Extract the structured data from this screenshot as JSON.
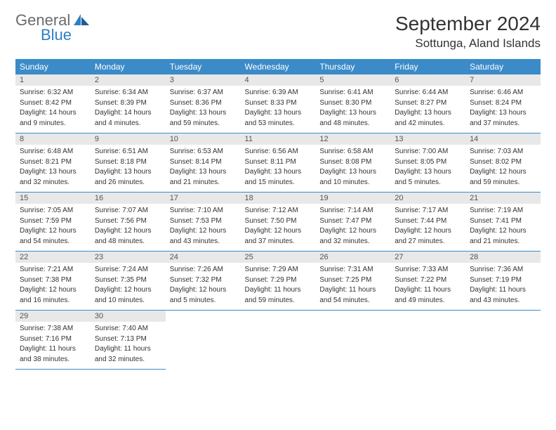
{
  "logo": {
    "general": "General",
    "blue": "Blue"
  },
  "title": "September 2024",
  "location": "Sottunga, Aland Islands",
  "colors": {
    "header_bg": "#3b8bc8",
    "header_text": "#ffffff",
    "daynum_bg": "#e8e8e8",
    "daynum_text": "#555555",
    "row_border": "#3b8bc8",
    "logo_gray": "#6b6b6b",
    "logo_blue": "#2f7fc1"
  },
  "weekdays": [
    "Sunday",
    "Monday",
    "Tuesday",
    "Wednesday",
    "Thursday",
    "Friday",
    "Saturday"
  ],
  "days": [
    {
      "n": "1",
      "sunrise": "Sunrise: 6:32 AM",
      "sunset": "Sunset: 8:42 PM",
      "day1": "Daylight: 14 hours",
      "day2": "and 9 minutes."
    },
    {
      "n": "2",
      "sunrise": "Sunrise: 6:34 AM",
      "sunset": "Sunset: 8:39 PM",
      "day1": "Daylight: 14 hours",
      "day2": "and 4 minutes."
    },
    {
      "n": "3",
      "sunrise": "Sunrise: 6:37 AM",
      "sunset": "Sunset: 8:36 PM",
      "day1": "Daylight: 13 hours",
      "day2": "and 59 minutes."
    },
    {
      "n": "4",
      "sunrise": "Sunrise: 6:39 AM",
      "sunset": "Sunset: 8:33 PM",
      "day1": "Daylight: 13 hours",
      "day2": "and 53 minutes."
    },
    {
      "n": "5",
      "sunrise": "Sunrise: 6:41 AM",
      "sunset": "Sunset: 8:30 PM",
      "day1": "Daylight: 13 hours",
      "day2": "and 48 minutes."
    },
    {
      "n": "6",
      "sunrise": "Sunrise: 6:44 AM",
      "sunset": "Sunset: 8:27 PM",
      "day1": "Daylight: 13 hours",
      "day2": "and 42 minutes."
    },
    {
      "n": "7",
      "sunrise": "Sunrise: 6:46 AM",
      "sunset": "Sunset: 8:24 PM",
      "day1": "Daylight: 13 hours",
      "day2": "and 37 minutes."
    },
    {
      "n": "8",
      "sunrise": "Sunrise: 6:48 AM",
      "sunset": "Sunset: 8:21 PM",
      "day1": "Daylight: 13 hours",
      "day2": "and 32 minutes."
    },
    {
      "n": "9",
      "sunrise": "Sunrise: 6:51 AM",
      "sunset": "Sunset: 8:18 PM",
      "day1": "Daylight: 13 hours",
      "day2": "and 26 minutes."
    },
    {
      "n": "10",
      "sunrise": "Sunrise: 6:53 AM",
      "sunset": "Sunset: 8:14 PM",
      "day1": "Daylight: 13 hours",
      "day2": "and 21 minutes."
    },
    {
      "n": "11",
      "sunrise": "Sunrise: 6:56 AM",
      "sunset": "Sunset: 8:11 PM",
      "day1": "Daylight: 13 hours",
      "day2": "and 15 minutes."
    },
    {
      "n": "12",
      "sunrise": "Sunrise: 6:58 AM",
      "sunset": "Sunset: 8:08 PM",
      "day1": "Daylight: 13 hours",
      "day2": "and 10 minutes."
    },
    {
      "n": "13",
      "sunrise": "Sunrise: 7:00 AM",
      "sunset": "Sunset: 8:05 PM",
      "day1": "Daylight: 13 hours",
      "day2": "and 5 minutes."
    },
    {
      "n": "14",
      "sunrise": "Sunrise: 7:03 AM",
      "sunset": "Sunset: 8:02 PM",
      "day1": "Daylight: 12 hours",
      "day2": "and 59 minutes."
    },
    {
      "n": "15",
      "sunrise": "Sunrise: 7:05 AM",
      "sunset": "Sunset: 7:59 PM",
      "day1": "Daylight: 12 hours",
      "day2": "and 54 minutes."
    },
    {
      "n": "16",
      "sunrise": "Sunrise: 7:07 AM",
      "sunset": "Sunset: 7:56 PM",
      "day1": "Daylight: 12 hours",
      "day2": "and 48 minutes."
    },
    {
      "n": "17",
      "sunrise": "Sunrise: 7:10 AM",
      "sunset": "Sunset: 7:53 PM",
      "day1": "Daylight: 12 hours",
      "day2": "and 43 minutes."
    },
    {
      "n": "18",
      "sunrise": "Sunrise: 7:12 AM",
      "sunset": "Sunset: 7:50 PM",
      "day1": "Daylight: 12 hours",
      "day2": "and 37 minutes."
    },
    {
      "n": "19",
      "sunrise": "Sunrise: 7:14 AM",
      "sunset": "Sunset: 7:47 PM",
      "day1": "Daylight: 12 hours",
      "day2": "and 32 minutes."
    },
    {
      "n": "20",
      "sunrise": "Sunrise: 7:17 AM",
      "sunset": "Sunset: 7:44 PM",
      "day1": "Daylight: 12 hours",
      "day2": "and 27 minutes."
    },
    {
      "n": "21",
      "sunrise": "Sunrise: 7:19 AM",
      "sunset": "Sunset: 7:41 PM",
      "day1": "Daylight: 12 hours",
      "day2": "and 21 minutes."
    },
    {
      "n": "22",
      "sunrise": "Sunrise: 7:21 AM",
      "sunset": "Sunset: 7:38 PM",
      "day1": "Daylight: 12 hours",
      "day2": "and 16 minutes."
    },
    {
      "n": "23",
      "sunrise": "Sunrise: 7:24 AM",
      "sunset": "Sunset: 7:35 PM",
      "day1": "Daylight: 12 hours",
      "day2": "and 10 minutes."
    },
    {
      "n": "24",
      "sunrise": "Sunrise: 7:26 AM",
      "sunset": "Sunset: 7:32 PM",
      "day1": "Daylight: 12 hours",
      "day2": "and 5 minutes."
    },
    {
      "n": "25",
      "sunrise": "Sunrise: 7:29 AM",
      "sunset": "Sunset: 7:29 PM",
      "day1": "Daylight: 11 hours",
      "day2": "and 59 minutes."
    },
    {
      "n": "26",
      "sunrise": "Sunrise: 7:31 AM",
      "sunset": "Sunset: 7:25 PM",
      "day1": "Daylight: 11 hours",
      "day2": "and 54 minutes."
    },
    {
      "n": "27",
      "sunrise": "Sunrise: 7:33 AM",
      "sunset": "Sunset: 7:22 PM",
      "day1": "Daylight: 11 hours",
      "day2": "and 49 minutes."
    },
    {
      "n": "28",
      "sunrise": "Sunrise: 7:36 AM",
      "sunset": "Sunset: 7:19 PM",
      "day1": "Daylight: 11 hours",
      "day2": "and 43 minutes."
    },
    {
      "n": "29",
      "sunrise": "Sunrise: 7:38 AM",
      "sunset": "Sunset: 7:16 PM",
      "day1": "Daylight: 11 hours",
      "day2": "and 38 minutes."
    },
    {
      "n": "30",
      "sunrise": "Sunrise: 7:40 AM",
      "sunset": "Sunset: 7:13 PM",
      "day1": "Daylight: 11 hours",
      "day2": "and 32 minutes."
    }
  ]
}
